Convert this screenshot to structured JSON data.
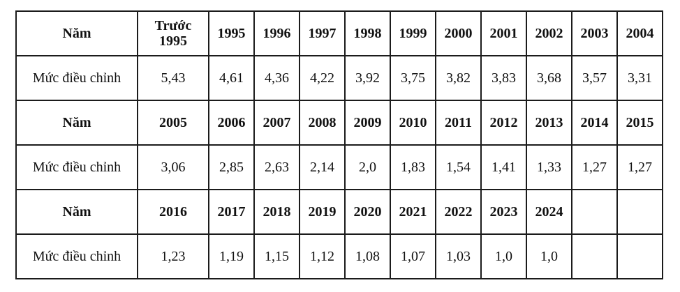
{
  "page": {
    "background_color": "#ffffff",
    "text_color": "#111111",
    "border_color": "#1b1b1b"
  },
  "table": {
    "description_labels": {
      "year_row_label": "Năm",
      "adjustment_row_label": "Mức điều chỉnh"
    },
    "rows": [
      {
        "type": "year",
        "cells": [
          "Năm",
          "Trước\n1995",
          "1995",
          "1996",
          "1997",
          "1998",
          "1999",
          "2000",
          "2001",
          "2002",
          "2003",
          "2004"
        ]
      },
      {
        "type": "adjustment",
        "cells": [
          "Mức điều chỉnh",
          "5,43",
          "4,61",
          "4,36",
          "4,22",
          "3,92",
          "3,75",
          "3,82",
          "3,83",
          "3,68",
          "3,57",
          "3,31"
        ]
      },
      {
        "type": "year",
        "cells": [
          "Năm",
          "2005",
          "2006",
          "2007",
          "2008",
          "2009",
          "2010",
          "2011",
          "2012",
          "2013",
          "2014",
          "2015"
        ]
      },
      {
        "type": "adjustment",
        "cells": [
          "Mức điều chỉnh",
          "3,06",
          "2,85",
          "2,63",
          "2,14",
          "2,0",
          "1,83",
          "1,54",
          "1,41",
          "1,33",
          "1,27",
          "1,27"
        ]
      },
      {
        "type": "year",
        "cells": [
          "Năm",
          "2016",
          "2017",
          "2018",
          "2019",
          "2020",
          "2021",
          "2022",
          "2023",
          "2024",
          "",
          ""
        ]
      },
      {
        "type": "adjustment",
        "cells": [
          "Mức điều chỉnh",
          "1,23",
          "1,19",
          "1,15",
          "1,12",
          "1,08",
          "1,07",
          "1,03",
          "1,0",
          "1,0",
          "",
          ""
        ]
      }
    ]
  }
}
